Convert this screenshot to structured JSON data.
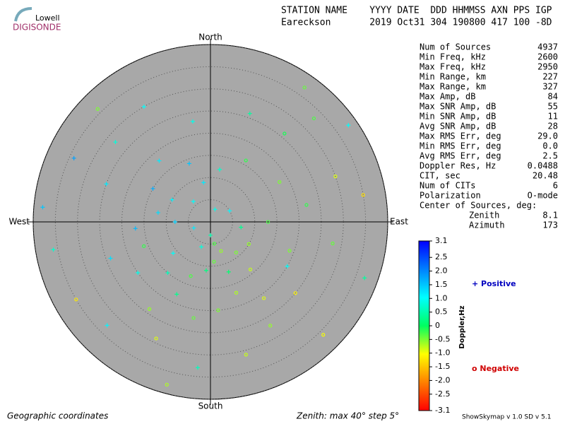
{
  "logo": {
    "top": "Lowell",
    "bottom": "DIGISONDE"
  },
  "header": {
    "line1": "STATION NAME    YYYY DATE  DDD HHMMSS AXN PPS IGP",
    "line2": "Eareckson       2019 Oct31 304 190800 417 100 -8D"
  },
  "stats": [
    [
      "Num of Sources",
      "4937"
    ],
    [
      "Min Freq, kHz",
      "2600"
    ],
    [
      "Max Freq, kHz",
      "2950"
    ],
    [
      "Min Range, km",
      "227"
    ],
    [
      "Max Range, km",
      "327"
    ],
    [
      "Max Amp, dB",
      "84"
    ],
    [
      "Max SNR Amp, dB",
      "55"
    ],
    [
      "Min SNR Amp, dB",
      "11"
    ],
    [
      "Avg SNR Amp, dB",
      "28"
    ],
    [
      "Max RMS Err, deg",
      "29.0"
    ],
    [
      "Min RMS Err, deg",
      "0.0"
    ],
    [
      "Avg RMS Err, deg",
      "2.5"
    ],
    [
      "Doppler Res, Hz",
      "0.0488"
    ],
    [
      "CIT, sec",
      "20.48"
    ],
    [
      "Num of CITs",
      "6"
    ],
    [
      "Polarization",
      "O-mode"
    ]
  ],
  "center": {
    "title": "Center of Sources, deg:",
    "rows": [
      [
        "Zenith",
        "8.1"
      ],
      [
        "Azimuth",
        "173"
      ]
    ]
  },
  "footer": {
    "left": "Geographic coordinates",
    "middle": "Zenith: max 40°  step 5°",
    "right": "ShowSkymap v 1.0   SD v 5.1"
  },
  "chart_data": {
    "type": "skymap",
    "directions": {
      "north": "North",
      "south": "South",
      "west": "West",
      "east": "East"
    },
    "rlim": [
      0,
      40
    ],
    "rticks": [
      5,
      10,
      15,
      20,
      25,
      30,
      35,
      40
    ],
    "zenith": [
      3,
      5,
      7,
      9,
      11,
      6,
      4,
      8,
      12,
      10,
      6,
      3,
      9,
      14,
      12,
      16,
      18,
      13,
      10,
      14,
      17,
      20,
      22,
      18,
      15,
      20,
      24,
      17,
      25,
      28,
      30,
      26,
      33,
      30,
      28,
      25,
      27,
      31,
      33,
      29,
      33,
      35,
      36,
      38,
      34,
      36,
      37,
      38,
      35,
      37,
      36,
      38,
      22,
      19,
      24,
      21,
      11,
      13,
      7,
      5,
      15,
      18,
      23,
      26,
      9,
      16,
      12,
      20
    ],
    "azimuth": [
      180,
      170,
      160,
      175,
      185,
      200,
      250,
      270,
      280,
      300,
      320,
      20,
      350,
      340,
      10,
      30,
      60,
      90,
      120,
      140,
      160,
      175,
      190,
      205,
      220,
      235,
      250,
      265,
      290,
      310,
      330,
      20,
      45,
      70,
      100,
      130,
      150,
      165,
      185,
      205,
      225,
      240,
      260,
      275,
      295,
      315,
      35,
      55,
      80,
      110,
      135,
      195,
      80,
      110,
      215,
      145,
      230,
      200,
      100,
      60,
      300,
      320,
      350,
      40,
      140,
      250,
      160,
      120
    ],
    "doppler": [
      0.5,
      -0.3,
      -0.6,
      -0.4,
      0.2,
      0.8,
      1.2,
      1.4,
      1.3,
      1.1,
      1.0,
      0.9,
      1.2,
      1.5,
      0.7,
      -0.2,
      -0.5,
      -0.3,
      -0.6,
      -0.8,
      -0.7,
      -0.5,
      -0.4,
      0.3,
      0.6,
      0.9,
      1.3,
      1.6,
      1.2,
      0.8,
      1.0,
      0.4,
      -0.3,
      -0.9,
      -0.4,
      -1.1,
      -0.6,
      -0.8,
      0.6,
      -0.9,
      1.1,
      -1.2,
      0.7,
      1.5,
      1.8,
      -0.5,
      -0.4,
      1.0,
      -1.3,
      0.4,
      -1.0,
      -0.7,
      -0.2,
      -0.5,
      -0.6,
      -0.9,
      1.0,
      -0.3,
      0.3,
      1.1,
      1.7,
      1.2,
      0.9,
      -0.1,
      -0.5,
      -0.2,
      0.1,
      1.0
    ],
    "colorbar": {
      "label": "Doppler,Hz",
      "lim": [
        -3.1,
        3.1
      ],
      "ticks": [
        3.1,
        2.5,
        {
          "value": 2,
          "label": "2.0"
        },
        1.5,
        {
          "value": 1,
          "label": "1.0"
        },
        0.5,
        0,
        -0.5,
        {
          "value": -1,
          "label": "-1.0"
        },
        -1.5,
        {
          "value": -2,
          "label": "-2.0"
        },
        -2.5,
        -3.1
      ],
      "colors": [
        "#ff0000",
        "#ff8000",
        "#ffff00",
        "#00ff60",
        "#00ffff",
        "#0080ff",
        "#0000ff"
      ]
    },
    "legend": {
      "positive": "+ Positive",
      "negative": "o Negative",
      "positive_color": "#0000c0",
      "negative_color": "#d00000"
    }
  }
}
